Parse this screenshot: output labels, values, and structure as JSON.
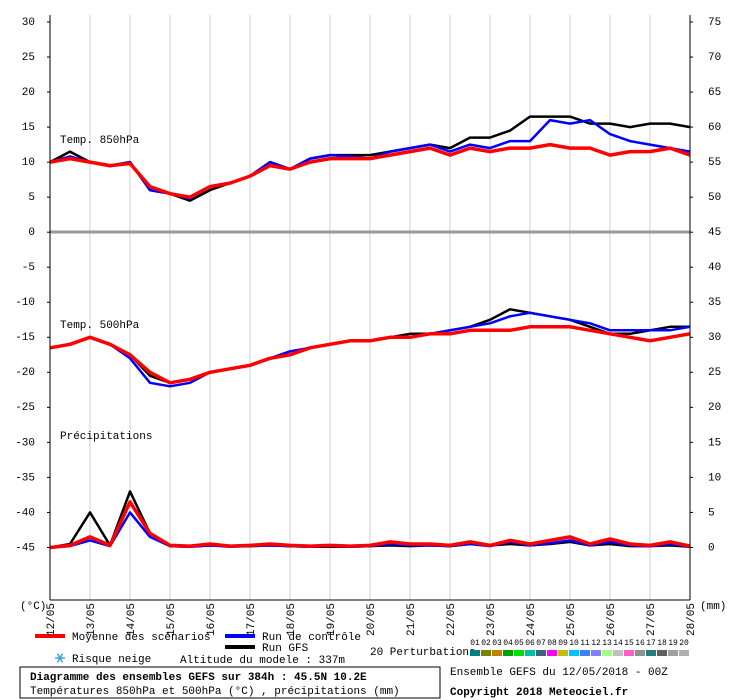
{
  "chart_data": {
    "type": "line",
    "title": "Diagramme des ensembles GEFS sur 384h : 45.5N 10.2E",
    "subtitle": "Températures 850hPa et 500hPa (°C) , précipitations (mm)",
    "y_label": "(°C)",
    "y2_label": "(mm)",
    "annotations": [
      "Temp. 850hPa",
      "Temp. 500hPa",
      "Précipitations"
    ],
    "snow_label": "Risque neige",
    "altitude_label": "Altitude du modele : 337m",
    "run_label": "Ensemble GEFS du 12/05/2018 - 00Z",
    "copyright": "Copyright 2018 Meteociel.fr",
    "perturbations": {
      "label": "20 Perturbations",
      "members": [
        {
          "name": "01",
          "color": "#008080"
        },
        {
          "name": "02",
          "color": "#808000"
        },
        {
          "name": "03",
          "color": "#c08000"
        },
        {
          "name": "04",
          "color": "#00a000"
        },
        {
          "name": "05",
          "color": "#00e000"
        },
        {
          "name": "06",
          "color": "#00c0a0"
        },
        {
          "name": "07",
          "color": "#406080"
        },
        {
          "name": "08",
          "color": "#ff00ff"
        },
        {
          "name": "09",
          "color": "#c0c000"
        },
        {
          "name": "10",
          "color": "#00c0ff"
        },
        {
          "name": "11",
          "color": "#4080ff"
        },
        {
          "name": "12",
          "color": "#8080ff"
        },
        {
          "name": "13",
          "color": "#a0ff80"
        },
        {
          "name": "14",
          "color": "#c0c0c0"
        },
        {
          "name": "15",
          "color": "#ff60c0"
        },
        {
          "name": "16",
          "color": "#909090"
        },
        {
          "name": "17",
          "color": "#208080"
        },
        {
          "name": "18",
          "color": "#606060"
        },
        {
          "name": "19",
          "color": "#a0a0a0"
        },
        {
          "name": "20",
          "color": "#b0b0b0"
        }
      ]
    },
    "categories": [
      "12/05",
      null,
      "13/05",
      null,
      "14/05",
      null,
      "15/05",
      null,
      "16/05",
      null,
      "17/05",
      null,
      "18/05",
      null,
      "19/05",
      null,
      "20/05",
      null,
      "21/05",
      null,
      "22/05",
      null,
      "23/05",
      null,
      "24/05",
      null,
      "25/05",
      null,
      "26/05",
      null,
      "27/05",
      null,
      "28/05"
    ],
    "ylim": [
      -52.5,
      31
    ],
    "yticks": [
      30,
      25,
      20,
      15,
      10,
      5,
      0,
      -5,
      -10,
      -15,
      -20,
      -25,
      -30,
      -35,
      -40,
      -45
    ],
    "y2lim": [
      -7.5,
      76
    ],
    "y2ticks": [
      75,
      70,
      65,
      60,
      55,
      50,
      45,
      40,
      35,
      30,
      25,
      20,
      15,
      10,
      5,
      0
    ],
    "grid": true,
    "series": [
      {
        "name": "Moyenne des scénarios",
        "color": "#ff0000",
        "values": [
          10,
          10.5,
          10,
          9.5,
          9.8,
          6.5,
          5.5,
          5,
          6.5,
          7,
          8,
          9.5,
          9,
          10,
          10.5,
          10.5,
          10.5,
          11,
          11.5,
          12,
          11,
          12,
          11.5,
          12,
          12,
          12.5,
          12,
          12,
          11,
          11.5,
          11.5,
          12,
          11
        ]
      },
      {
        "name": "Run de contrôle",
        "color": "#0000ff",
        "values": [
          10,
          10.8,
          10,
          9.4,
          10,
          6,
          5.5,
          4.8,
          6.5,
          7,
          8,
          10,
          9,
          10.5,
          11,
          10.8,
          10.5,
          11.5,
          12,
          12.5,
          11.5,
          12.5,
          12,
          13,
          13,
          16,
          15.5,
          16,
          14,
          13,
          12.5,
          12,
          11.5
        ]
      },
      {
        "name": "Run GFS",
        "color": "#000000",
        "values": [
          10,
          11.5,
          10,
          9.5,
          10,
          6,
          5.5,
          4.5,
          6,
          7,
          8,
          10,
          9,
          10.5,
          11,
          11,
          11,
          11.5,
          12,
          12.5,
          12,
          13.5,
          13.5,
          14.5,
          16.5,
          16.5,
          16.5,
          15.5,
          15.5,
          15,
          15.5,
          15.5,
          15
        ]
      },
      {
        "name": "Moyenne des scénarios",
        "color": "#ff0000",
        "values": [
          -16.5,
          -16,
          -15,
          -16,
          -17.5,
          -20,
          -21.5,
          -21,
          -20,
          -19.5,
          -19,
          -18,
          -17.5,
          -16.5,
          -16,
          -15.5,
          -15.5,
          -15,
          -15,
          -14.5,
          -14.5,
          -14,
          -14,
          -14,
          -13.5,
          -13.5,
          -13.5,
          -14,
          -14.5,
          -15,
          -15.5,
          -15,
          -14.5
        ]
      },
      {
        "name": "Run de contrôle",
        "color": "#0000ff",
        "values": [
          -16.5,
          -16,
          -15,
          -16,
          -18,
          -21.5,
          -22,
          -21.5,
          -20,
          -19.5,
          -19,
          -18,
          -17,
          -16.5,
          -16,
          -15.5,
          -15.5,
          -15,
          -15,
          -14.5,
          -14,
          -13.5,
          -13,
          -12,
          -11.5,
          -12,
          -12.5,
          -13,
          -14,
          -14,
          -14,
          -14,
          -13.5
        ]
      },
      {
        "name": "Run GFS",
        "color": "#000000",
        "values": [
          -16.5,
          -16,
          -15,
          -16,
          -17.5,
          -20.5,
          -21.5,
          -21,
          -20,
          -19.5,
          -19,
          -18,
          -17.5,
          -16.5,
          -16,
          -15.5,
          -15.5,
          -15,
          -14.5,
          -14.5,
          -14,
          -13.5,
          -12.5,
          -11,
          -11.5,
          -12,
          -12.5,
          -13.5,
          -14.5,
          -14.5,
          -14,
          -13.5,
          -13.5
        ]
      },
      {
        "name": "Moyenne des scénarios",
        "color": "#ff0000",
        "axis": "y2",
        "values": [
          0,
          0.3,
          1.5,
          0.3,
          6.5,
          2,
          0.3,
          0.2,
          0.5,
          0.2,
          0.3,
          0.5,
          0.3,
          0.2,
          0.3,
          0.2,
          0.3,
          0.8,
          0.5,
          0.5,
          0.3,
          0.8,
          0.3,
          1,
          0.5,
          1,
          1.5,
          0.5,
          1.2,
          0.5,
          0.3,
          0.8,
          0.2
        ]
      },
      {
        "name": "Run de contrôle",
        "color": "#0000ff",
        "axis": "y2",
        "values": [
          0,
          0.2,
          1,
          0.2,
          5,
          1.5,
          0.2,
          0.1,
          0.3,
          0.1,
          0.2,
          0.3,
          0.2,
          0.1,
          0.2,
          0.1,
          0.2,
          0.5,
          0.3,
          0.3,
          0.2,
          0.5,
          0.2,
          0.8,
          0.3,
          0.6,
          1,
          0.3,
          0.8,
          0.3,
          0.2,
          0.5,
          0.1
        ]
      },
      {
        "name": "Run GFS",
        "color": "#000000",
        "axis": "y2",
        "values": [
          0,
          0.5,
          5,
          0.3,
          8,
          2,
          0.2,
          0.1,
          0.3,
          0.2,
          0.2,
          0.3,
          0.2,
          0.1,
          0.1,
          0.1,
          0.2,
          0.3,
          0.2,
          0.3,
          0.2,
          0.5,
          0.3,
          0.5,
          0.3,
          0.5,
          0.8,
          0.3,
          0.5,
          0.2,
          0.2,
          0.3,
          0.1
        ]
      }
    ]
  }
}
